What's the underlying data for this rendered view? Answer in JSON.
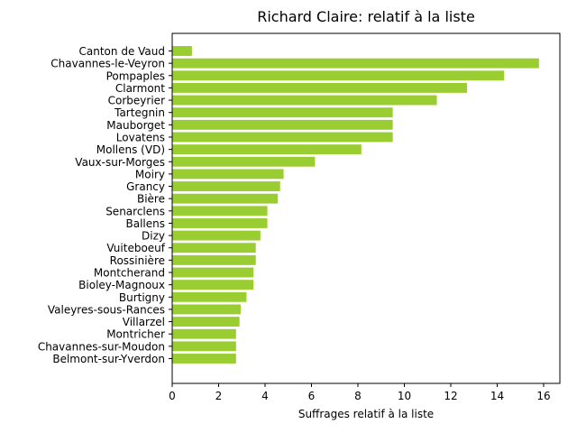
{
  "chart_data": {
    "type": "bar",
    "orientation": "horizontal",
    "title": "Richard Claire: relatif à la liste",
    "xlabel": "Suffrages relatif à la liste",
    "ylabel": "",
    "xlim": [
      0,
      16.7
    ],
    "xticks": [
      0,
      2,
      4,
      6,
      8,
      10,
      12,
      14,
      16
    ],
    "bar_color": "#9acd32",
    "grid": false,
    "categories": [
      "Canton de Vaud",
      "Chavannes-le-Veyron",
      "Pompaples",
      "Clarmont",
      "Corbeyrier",
      "Tartegnin",
      "Mauborget",
      "Lovatens",
      "Mollens (VD)",
      "Vaux-sur-Morges",
      "Moiry",
      "Grancy",
      "Bière",
      "Senarclens",
      "Ballens",
      "Dizy",
      "Vuiteboeuf",
      "Rossinière",
      "Montcherand",
      "Bioley-Magnoux",
      "Burtigny",
      "Valeyres-sous-Rances",
      "Villarzel",
      "Montricher",
      "Chavannes-sur-Moudon",
      "Belmont-sur-Yverdon"
    ],
    "values": [
      0.85,
      15.8,
      14.3,
      12.7,
      11.4,
      9.5,
      9.5,
      9.5,
      8.15,
      6.15,
      4.8,
      4.65,
      4.55,
      4.1,
      4.1,
      3.8,
      3.6,
      3.6,
      3.5,
      3.5,
      3.2,
      2.95,
      2.9,
      2.75,
      2.75,
      2.75
    ]
  }
}
